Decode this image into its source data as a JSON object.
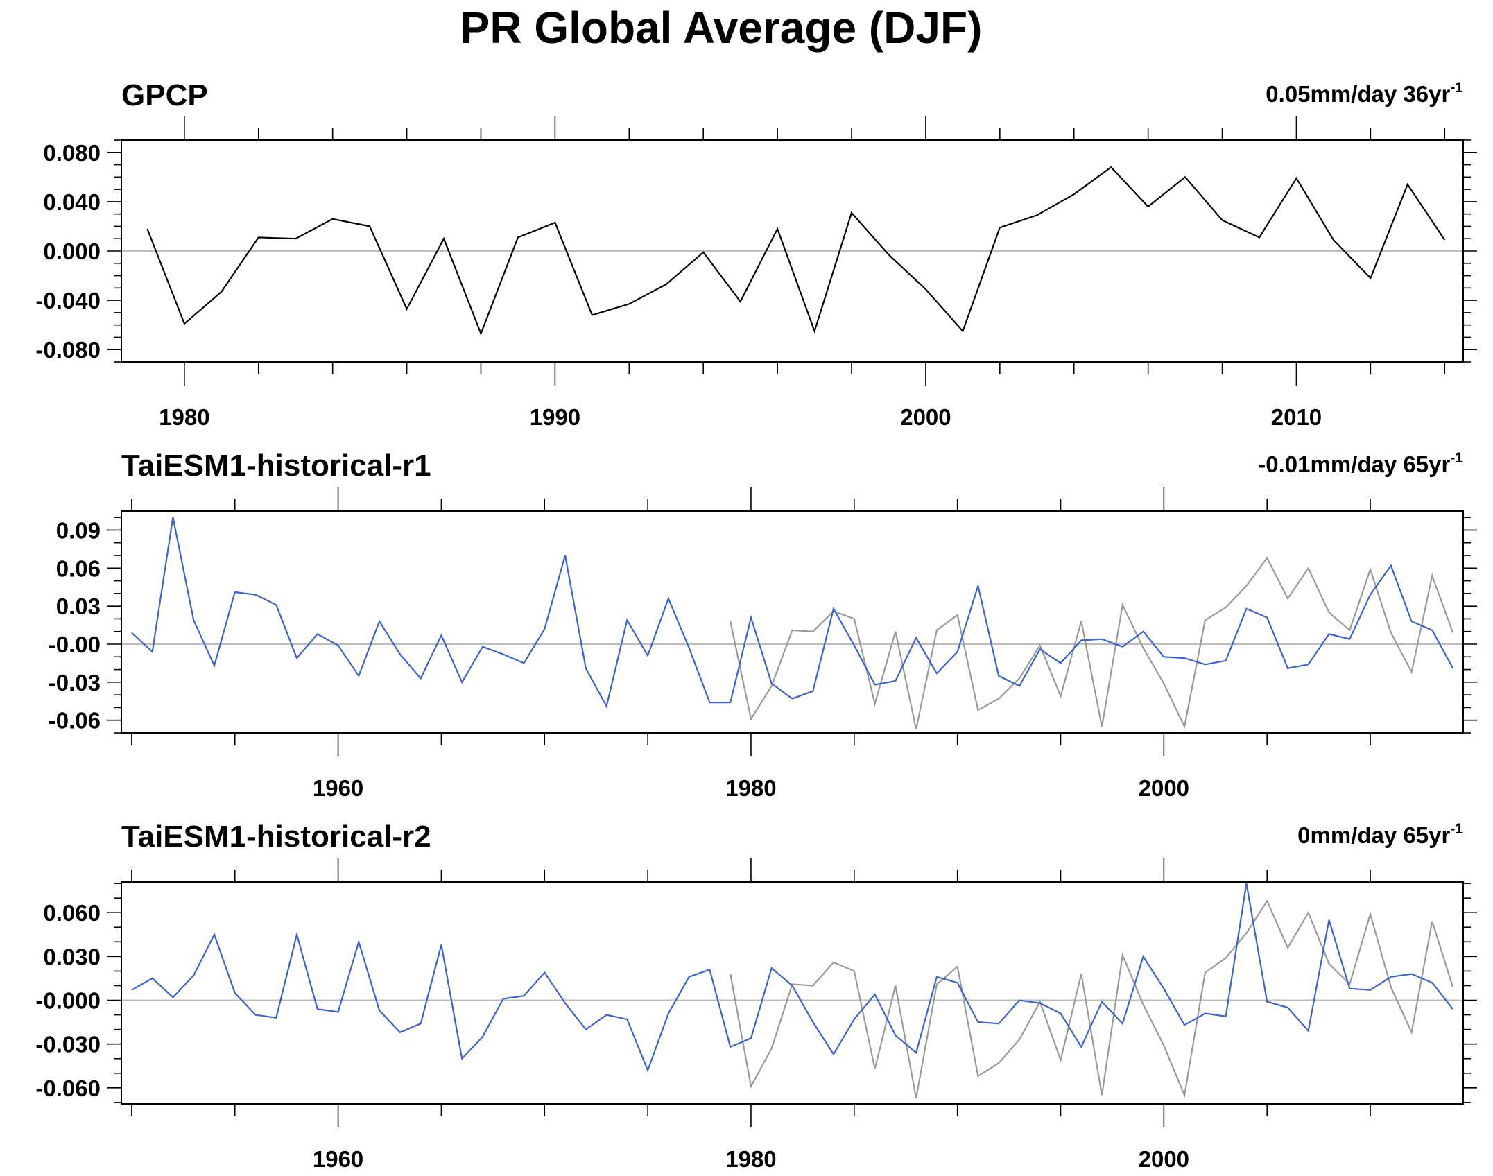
{
  "figure": {
    "title": "PR Global Average (DJF)"
  },
  "colors": {
    "obs": "#000000",
    "obs_overlay": "#9a9a9a",
    "model": "#3a63d6",
    "zero_line": "#bdbdbd",
    "frame": "#000000"
  },
  "chart_data": [
    {
      "type": "line",
      "title": "GPCP",
      "trend": {
        "value": "0.05mm/day 36yr",
        "sup": "-1"
      },
      "xlim": [
        1978.3,
        2014.5
      ],
      "ylim": [
        -0.09,
        0.09
      ],
      "yticks": [
        -0.08,
        -0.04,
        0.0,
        0.04,
        0.08
      ],
      "yticklabels": [
        "-0.080",
        "-0.040",
        "0.000",
        "0.040",
        "0.080"
      ],
      "yminor": 0.01,
      "xticks": [
        1980,
        1990,
        2000,
        2010
      ],
      "xticklabels": [
        "1980",
        "1990",
        "2000",
        "2010"
      ],
      "xminor": 2,
      "series": [
        {
          "role": "obs",
          "x": [
            1979,
            1980,
            1981,
            1982,
            1983,
            1984,
            1985,
            1986,
            1987,
            1988,
            1989,
            1990,
            1991,
            1992,
            1993,
            1994,
            1995,
            1996,
            1997,
            1998,
            1999,
            2000,
            2001,
            2002,
            2003,
            2004,
            2005,
            2006,
            2007,
            2008,
            2009,
            2010,
            2011,
            2012,
            2013,
            2014
          ],
          "values": [
            0.018,
            -0.059,
            -0.033,
            0.011,
            0.01,
            0.026,
            0.02,
            -0.047,
            0.01,
            -0.067,
            0.011,
            0.023,
            -0.052,
            -0.043,
            -0.027,
            -0.001,
            -0.041,
            0.018,
            -0.065,
            0.031,
            -0.003,
            -0.031,
            -0.065,
            0.019,
            0.029,
            0.046,
            0.068,
            0.036,
            0.06,
            0.025,
            0.011,
            0.059,
            0.009,
            -0.022,
            0.054,
            0.009
          ]
        }
      ]
    },
    {
      "type": "line",
      "title": "TaiESM1-historical-r1",
      "trend": {
        "value": "-0.01mm/day 65yr",
        "sup": "-1"
      },
      "xlim": [
        1949.5,
        2014.5
      ],
      "ylim": [
        -0.07,
        0.105
      ],
      "yticks": [
        -0.06,
        -0.03,
        0.0,
        0.03,
        0.06,
        0.09
      ],
      "yticklabels": [
        "-0.06",
        "-0.03",
        "-0.00",
        "0.03",
        "0.06",
        "0.09"
      ],
      "yminor": 0.01,
      "xticks": [
        1960,
        1980,
        2000
      ],
      "xticklabels": [
        "1960",
        "1980",
        "2000"
      ],
      "xminor": 5,
      "series": [
        {
          "role": "obs_overlay",
          "x": [
            1979,
            1980,
            1981,
            1982,
            1983,
            1984,
            1985,
            1986,
            1987,
            1988,
            1989,
            1990,
            1991,
            1992,
            1993,
            1994,
            1995,
            1996,
            1997,
            1998,
            1999,
            2000,
            2001,
            2002,
            2003,
            2004,
            2005,
            2006,
            2007,
            2008,
            2009,
            2010,
            2011,
            2012,
            2013,
            2014
          ],
          "values": [
            0.018,
            -0.059,
            -0.033,
            0.011,
            0.01,
            0.026,
            0.02,
            -0.047,
            0.01,
            -0.067,
            0.011,
            0.023,
            -0.052,
            -0.043,
            -0.027,
            -0.001,
            -0.041,
            0.018,
            -0.065,
            0.031,
            -0.003,
            -0.031,
            -0.065,
            0.019,
            0.029,
            0.046,
            0.068,
            0.036,
            0.06,
            0.025,
            0.011,
            0.059,
            0.009,
            -0.022,
            0.054,
            0.009
          ]
        },
        {
          "role": "model",
          "x": [
            1950,
            1951,
            1952,
            1953,
            1954,
            1955,
            1956,
            1957,
            1958,
            1959,
            1960,
            1961,
            1962,
            1963,
            1964,
            1965,
            1966,
            1967,
            1968,
            1969,
            1970,
            1971,
            1972,
            1973,
            1974,
            1975,
            1976,
            1977,
            1978,
            1979,
            1980,
            1981,
            1982,
            1983,
            1984,
            1985,
            1986,
            1987,
            1988,
            1989,
            1990,
            1991,
            1992,
            1993,
            1994,
            1995,
            1996,
            1997,
            1998,
            1999,
            2000,
            2001,
            2002,
            2003,
            2004,
            2005,
            2006,
            2007,
            2008,
            2009,
            2010,
            2011,
            2012,
            2013,
            2014
          ],
          "values": [
            0.009,
            -0.006,
            0.1,
            0.019,
            -0.017,
            0.041,
            0.039,
            0.031,
            -0.011,
            0.008,
            -0.001,
            -0.025,
            0.018,
            -0.008,
            -0.027,
            0.007,
            -0.03,
            -0.002,
            -0.008,
            -0.015,
            0.012,
            0.07,
            -0.019,
            -0.049,
            0.019,
            -0.009,
            0.036,
            -0.003,
            -0.046,
            -0.046,
            0.021,
            -0.031,
            -0.043,
            -0.037,
            0.028,
            -0.001,
            -0.032,
            -0.029,
            0.005,
            -0.023,
            -0.006,
            0.046,
            -0.025,
            -0.033,
            -0.004,
            -0.015,
            0.003,
            0.004,
            -0.002,
            0.01,
            -0.01,
            -0.011,
            -0.016,
            -0.013,
            0.028,
            0.021,
            -0.019,
            -0.016,
            0.008,
            0.004,
            0.039,
            0.062,
            0.018,
            0.011,
            -0.019
          ]
        }
      ]
    },
    {
      "type": "line",
      "title": "TaiESM1-historical-r2",
      "trend": {
        "value": "0mm/day 65yr",
        "sup": "-1"
      },
      "xlim": [
        1949.5,
        2014.5
      ],
      "ylim": [
        -0.071,
        0.081
      ],
      "yticks": [
        -0.06,
        -0.03,
        0.0,
        0.03,
        0.06
      ],
      "yticklabels": [
        "-0.060",
        "-0.030",
        "-0.000",
        "0.030",
        "0.060"
      ],
      "yminor": 0.01,
      "xticks": [
        1960,
        1980,
        2000
      ],
      "xticklabels": [
        "1960",
        "1980",
        "2000"
      ],
      "xminor": 5,
      "series": [
        {
          "role": "obs_overlay",
          "x": [
            1979,
            1980,
            1981,
            1982,
            1983,
            1984,
            1985,
            1986,
            1987,
            1988,
            1989,
            1990,
            1991,
            1992,
            1993,
            1994,
            1995,
            1996,
            1997,
            1998,
            1999,
            2000,
            2001,
            2002,
            2003,
            2004,
            2005,
            2006,
            2007,
            2008,
            2009,
            2010,
            2011,
            2012,
            2013,
            2014
          ],
          "values": [
            0.018,
            -0.059,
            -0.033,
            0.011,
            0.01,
            0.026,
            0.02,
            -0.047,
            0.01,
            -0.067,
            0.011,
            0.023,
            -0.052,
            -0.043,
            -0.027,
            -0.001,
            -0.041,
            0.018,
            -0.065,
            0.031,
            -0.003,
            -0.031,
            -0.065,
            0.019,
            0.029,
            0.046,
            0.068,
            0.036,
            0.06,
            0.025,
            0.011,
            0.059,
            0.009,
            -0.022,
            0.054,
            0.009
          ]
        },
        {
          "role": "model",
          "x": [
            1950,
            1951,
            1952,
            1953,
            1954,
            1955,
            1956,
            1957,
            1958,
            1959,
            1960,
            1961,
            1962,
            1963,
            1964,
            1965,
            1966,
            1967,
            1968,
            1969,
            1970,
            1971,
            1972,
            1973,
            1974,
            1975,
            1976,
            1977,
            1978,
            1979,
            1980,
            1981,
            1982,
            1983,
            1984,
            1985,
            1986,
            1987,
            1988,
            1989,
            1990,
            1991,
            1992,
            1993,
            1994,
            1995,
            1996,
            1997,
            1998,
            1999,
            2000,
            2001,
            2002,
            2003,
            2004,
            2005,
            2006,
            2007,
            2008,
            2009,
            2010,
            2011,
            2012,
            2013,
            2014
          ],
          "values": [
            0.007,
            0.015,
            0.002,
            0.017,
            0.045,
            0.005,
            -0.01,
            -0.012,
            0.045,
            -0.006,
            -0.008,
            0.04,
            -0.007,
            -0.022,
            -0.016,
            0.038,
            -0.04,
            -0.025,
            0.001,
            0.003,
            0.019,
            -0.002,
            -0.02,
            -0.01,
            -0.013,
            -0.048,
            -0.009,
            0.016,
            0.021,
            -0.032,
            -0.026,
            0.022,
            0.01,
            -0.015,
            -0.037,
            -0.013,
            0.004,
            -0.024,
            -0.036,
            0.016,
            0.012,
            -0.015,
            -0.016,
            0.0,
            -0.002,
            -0.009,
            -0.032,
            -0.001,
            -0.016,
            0.03,
            0.008,
            -0.017,
            -0.009,
            -0.011,
            0.08,
            -0.001,
            -0.005,
            -0.021,
            0.055,
            0.008,
            0.007,
            0.016,
            0.018,
            0.012,
            -0.006
          ]
        }
      ]
    }
  ]
}
